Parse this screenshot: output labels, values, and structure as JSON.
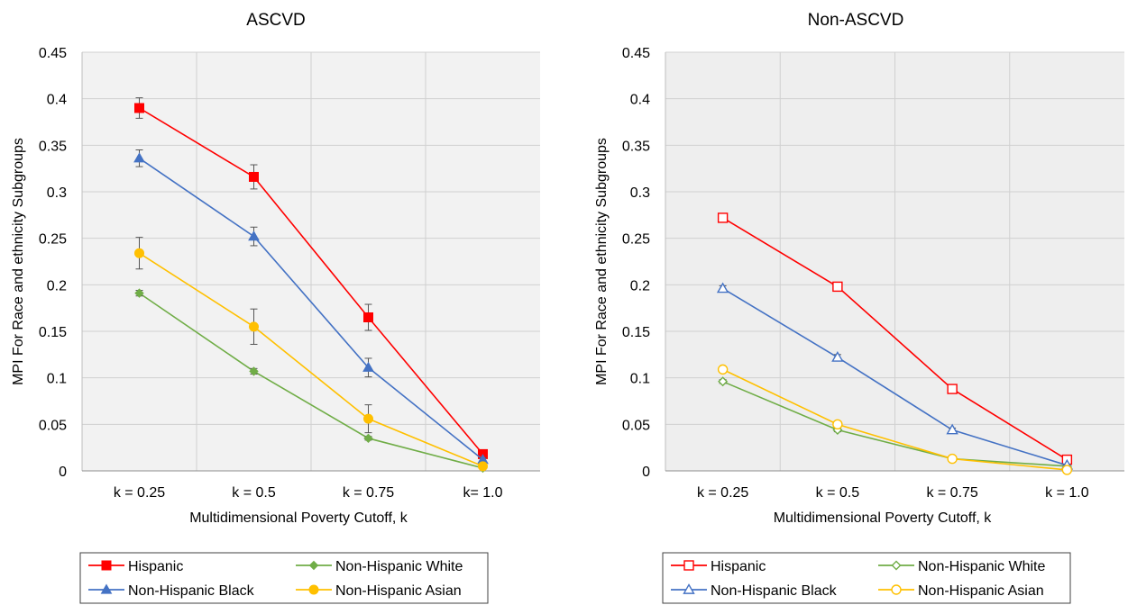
{
  "chart_data": [
    {
      "type": "line",
      "title": "ASCVD",
      "xlabel": "Multidimensional Poverty Cutoff, k",
      "ylabel": "MPI For Race and ethnicity Subgroups",
      "categories": [
        "k = 0.25",
        "k = 0.5",
        "k = 0.75",
        "k= 1.0"
      ],
      "ylim": [
        0,
        0.45
      ],
      "yticks": [
        "0",
        "0.05",
        "0.1",
        "0.15",
        "0.2",
        "0.25",
        "0.3",
        "0.35",
        "0.4",
        "0.45"
      ],
      "grid": true,
      "marker_fill": "filled",
      "legend_position": "bottom",
      "series": [
        {
          "name": "Hispanic",
          "color": "#ff0000",
          "marker": "square",
          "values": [
            0.39,
            0.316,
            0.165,
            0.018
          ],
          "errors": [
            0.011,
            0.013,
            0.014,
            0.003
          ]
        },
        {
          "name": "Non-Hispanic White",
          "color": "#70ad47",
          "marker": "diamond",
          "values": [
            0.191,
            0.107,
            0.035,
            0.003
          ],
          "errors": [
            0.003,
            0.003,
            0.002,
            0.001
          ]
        },
        {
          "name": "Non-Hispanic Black",
          "color": "#4472c4",
          "marker": "triangle",
          "values": [
            0.336,
            0.252,
            0.111,
            0.012
          ],
          "errors": [
            0.009,
            0.01,
            0.01,
            0.002
          ]
        },
        {
          "name": "Non-Hispanic Asian",
          "color": "#ffc000",
          "marker": "circle",
          "values": [
            0.234,
            0.155,
            0.056,
            0.005
          ],
          "errors": [
            0.017,
            0.019,
            0.015,
            0.003
          ]
        }
      ]
    },
    {
      "type": "line",
      "title": "Non-ASCVD",
      "xlabel": "Multidimensional Poverty Cutoff, k",
      "ylabel": "MPI For Race and ethnicity Subgroups",
      "categories": [
        "k = 0.25",
        "k = 0.5",
        "k = 0.75",
        "k = 1.0"
      ],
      "ylim": [
        0,
        0.45
      ],
      "yticks": [
        "0",
        "0.05",
        "0.1",
        "0.15",
        "0.2",
        "0.25",
        "0.3",
        "0.35",
        "0.4",
        "0.45"
      ],
      "grid": true,
      "marker_fill": "hollow",
      "legend_position": "bottom",
      "series": [
        {
          "name": "Hispanic",
          "color": "#ff0000",
          "marker": "square",
          "values": [
            0.272,
            0.198,
            0.088,
            0.012
          ],
          "errors": [
            0.002,
            0.002,
            0.002,
            0.001
          ]
        },
        {
          "name": "Non-Hispanic White",
          "color": "#70ad47",
          "marker": "diamond",
          "values": [
            0.096,
            0.044,
            0.013,
            0.005
          ],
          "errors": [
            0.002,
            0.002,
            0.002,
            0.001
          ]
        },
        {
          "name": "Non-Hispanic Black",
          "color": "#4472c4",
          "marker": "triangle",
          "values": [
            0.196,
            0.122,
            0.044,
            0.006
          ],
          "errors": [
            0.003,
            0.003,
            0.002,
            0.001
          ]
        },
        {
          "name": "Non-Hispanic Asian",
          "color": "#ffc000",
          "marker": "circle",
          "values": [
            0.109,
            0.05,
            0.013,
            0.001
          ],
          "errors": [
            0.003,
            0.002,
            0.002,
            0.001
          ]
        }
      ]
    }
  ]
}
